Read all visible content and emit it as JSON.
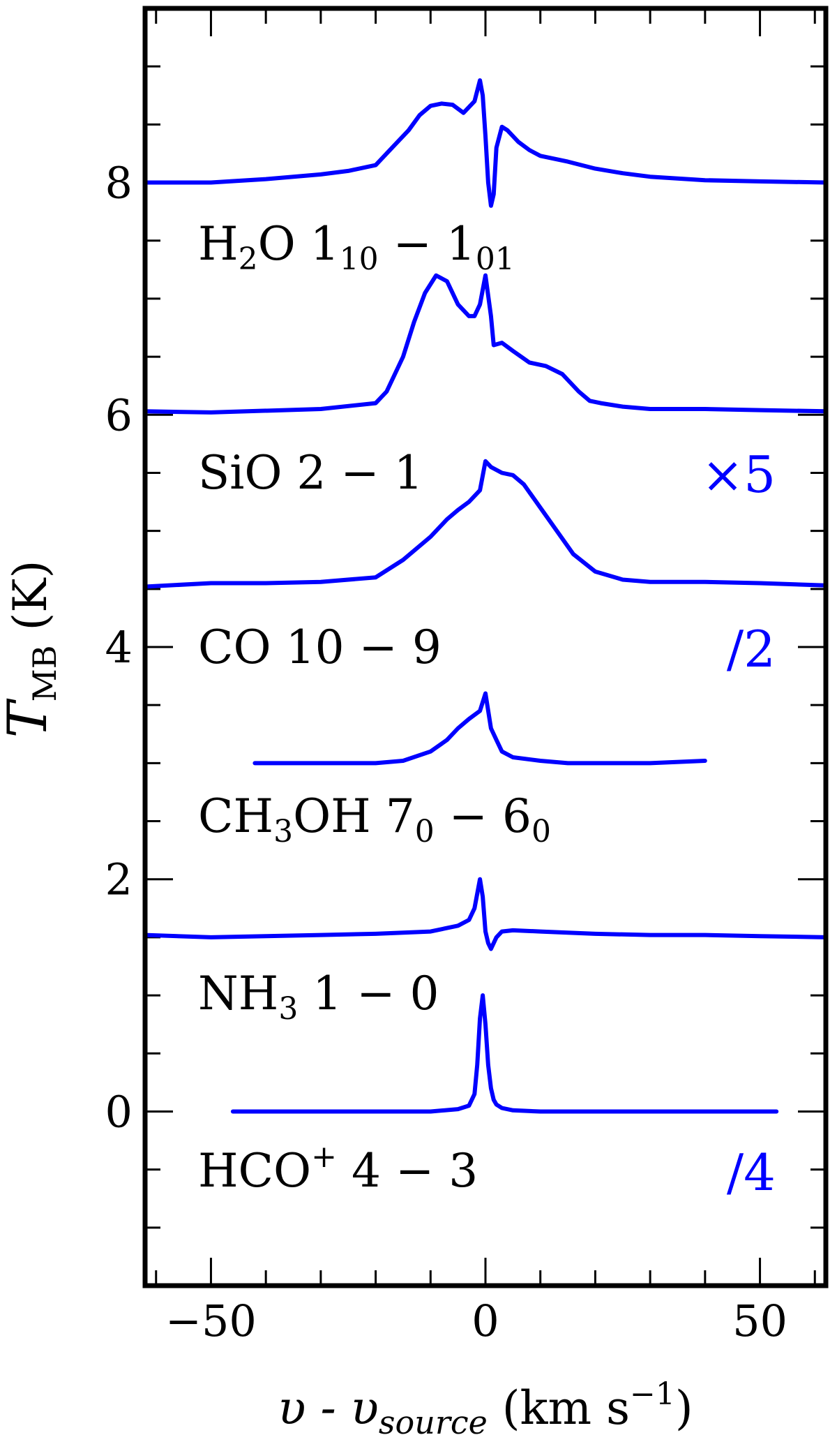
{
  "chart_data": {
    "type": "line",
    "xlabel": {
      "pre": "υ - υ",
      "sub": "source",
      "post": " (km s",
      "sup": "−1",
      "end": ")"
    },
    "ylabel": {
      "main": "T",
      "sub": "MB",
      "post": " (K)"
    },
    "xlim": [
      -62,
      62
    ],
    "ylim": [
      -1.5,
      9.5
    ],
    "x_ticks": [
      -50,
      0,
      50
    ],
    "x_tick_labels": [
      "−50",
      "0",
      "50"
    ],
    "y_ticks": [
      0,
      2,
      4,
      6,
      8
    ],
    "y_tick_labels": [
      "0",
      "2",
      "4",
      "6",
      "8"
    ],
    "grid": false,
    "legend": "none",
    "color": "#0000ff",
    "series": [
      {
        "label": {
          "main": "H",
          "sub1": "2",
          "mid": "O 1",
          "sub2": "10",
          "mid2": " − 1",
          "sub3": "01"
        },
        "scale": "",
        "baseline": 8.0,
        "x": [
          -62,
          -50,
          -40,
          -30,
          -25,
          -20,
          -17,
          -14,
          -12,
          -10,
          -8,
          -6,
          -4,
          -2,
          -1,
          -0.5,
          0,
          0.5,
          1,
          1.5,
          2,
          3,
          4,
          6,
          8,
          10,
          15,
          20,
          25,
          30,
          40,
          50,
          62
        ],
        "y": [
          8.0,
          8.0,
          8.03,
          8.07,
          8.1,
          8.15,
          8.3,
          8.45,
          8.58,
          8.66,
          8.68,
          8.67,
          8.6,
          8.7,
          8.88,
          8.75,
          8.4,
          8.0,
          7.8,
          7.9,
          8.3,
          8.48,
          8.45,
          8.35,
          8.28,
          8.23,
          8.18,
          8.12,
          8.08,
          8.05,
          8.02,
          8.01,
          8.0
        ]
      },
      {
        "label": {
          "main": "SiO 2 − 1"
        },
        "scale": "×5",
        "baseline": 6.0,
        "x": [
          -62,
          -50,
          -30,
          -20,
          -18,
          -15,
          -13,
          -11,
          -9,
          -7,
          -5,
          -3,
          -2,
          -1,
          0,
          1,
          1.5,
          3,
          5,
          8,
          11,
          14,
          17,
          19,
          21,
          25,
          30,
          40,
          50,
          62
        ],
        "y": [
          6.03,
          6.02,
          6.05,
          6.1,
          6.2,
          6.5,
          6.8,
          7.05,
          7.2,
          7.15,
          6.95,
          6.85,
          6.85,
          6.95,
          7.2,
          6.85,
          6.6,
          6.62,
          6.55,
          6.45,
          6.42,
          6.35,
          6.2,
          6.12,
          6.1,
          6.07,
          6.05,
          6.05,
          6.04,
          6.03
        ]
      },
      {
        "label": {
          "main": "CO 10 − 9"
        },
        "scale": "/2",
        "baseline": 4.5,
        "x": [
          -62,
          -50,
          -40,
          -30,
          -20,
          -15,
          -10,
          -7,
          -5,
          -3,
          -1,
          0,
          1,
          3,
          5,
          7,
          10,
          13,
          16,
          20,
          25,
          30,
          40,
          50,
          62
        ],
        "y": [
          4.52,
          4.55,
          4.55,
          4.56,
          4.6,
          4.75,
          4.95,
          5.1,
          5.18,
          5.25,
          5.35,
          5.6,
          5.55,
          5.5,
          5.48,
          5.4,
          5.2,
          5.0,
          4.8,
          4.65,
          4.58,
          4.56,
          4.56,
          4.55,
          4.53
        ]
      },
      {
        "label": {
          "main": "CH",
          "sub1": "3",
          "mid": "OH 7",
          "sub2": "0",
          "mid2": " − 6",
          "sub3": "0"
        },
        "scale": "",
        "baseline": 3.0,
        "x": [
          -42,
          -30,
          -20,
          -15,
          -10,
          -7,
          -5,
          -3,
          -1,
          0,
          1,
          2,
          3,
          5,
          10,
          15,
          20,
          30,
          40
        ],
        "y": [
          3.0,
          3.0,
          3.0,
          3.02,
          3.1,
          3.2,
          3.3,
          3.38,
          3.45,
          3.6,
          3.3,
          3.2,
          3.1,
          3.05,
          3.02,
          3.0,
          3.0,
          3.0,
          3.02
        ]
      },
      {
        "label": {
          "main": "NH",
          "sub1": "3",
          "mid": " 1 − 0"
        },
        "scale": "",
        "baseline": 1.5,
        "x": [
          -62,
          -50,
          -40,
          -30,
          -20,
          -10,
          -5,
          -3,
          -2,
          -1,
          -0.5,
          0,
          0.5,
          1,
          1.5,
          2,
          3,
          5,
          10,
          20,
          30,
          40,
          50,
          62
        ],
        "y": [
          1.52,
          1.5,
          1.51,
          1.52,
          1.53,
          1.55,
          1.6,
          1.65,
          1.75,
          2.0,
          1.85,
          1.55,
          1.45,
          1.4,
          1.45,
          1.5,
          1.55,
          1.56,
          1.55,
          1.53,
          1.52,
          1.52,
          1.51,
          1.5
        ]
      },
      {
        "label": {
          "main": "HCO",
          "sup1": "+",
          "mid": " 4 − 3"
        },
        "scale": "/4",
        "baseline": 0.0,
        "x": [
          -46,
          -30,
          -20,
          -10,
          -5,
          -3,
          -2,
          -1.5,
          -1,
          -0.5,
          0,
          0.5,
          1,
          1.5,
          2,
          3,
          5,
          10,
          20,
          30,
          40,
          53
        ],
        "y": [
          0.0,
          0.0,
          0.0,
          0.0,
          0.02,
          0.05,
          0.15,
          0.4,
          0.8,
          1.0,
          0.75,
          0.4,
          0.2,
          0.1,
          0.06,
          0.03,
          0.01,
          0.0,
          0.0,
          0.0,
          0.0,
          0.0
        ]
      }
    ]
  }
}
